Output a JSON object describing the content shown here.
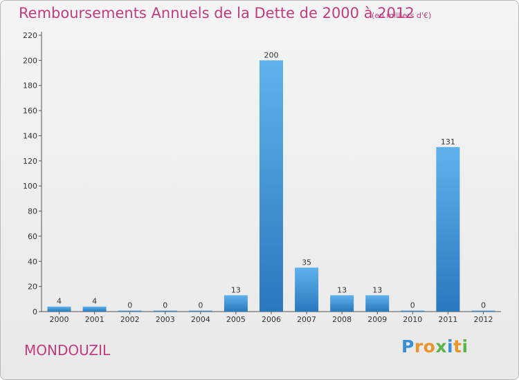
{
  "title": "Remboursements Annuels de la Dette de 2000 à 2012",
  "subtitle": "(en milliers d'€)",
  "commune": "MONDOUZIL",
  "logo": {
    "text": "Proxiti",
    "letter_colors": [
      "#3a8fd4",
      "#e8952b",
      "#e8952b",
      "#5ab54a",
      "#3a8fd4",
      "#e8952b",
      "#5ab54a"
    ]
  },
  "chart_data": {
    "type": "bar",
    "categories": [
      "2000",
      "2001",
      "2002",
      "2003",
      "2004",
      "2005",
      "2006",
      "2007",
      "2008",
      "2009",
      "2010",
      "2011",
      "2012"
    ],
    "values": [
      4,
      4,
      0,
      0,
      0,
      13,
      200,
      35,
      13,
      13,
      0,
      131,
      0
    ],
    "ylim": [
      0,
      220
    ],
    "yticks": [
      0,
      20,
      40,
      60,
      80,
      100,
      120,
      140,
      160,
      180,
      200,
      220
    ],
    "grid": false,
    "bar_color": "#3a8fd4"
  }
}
